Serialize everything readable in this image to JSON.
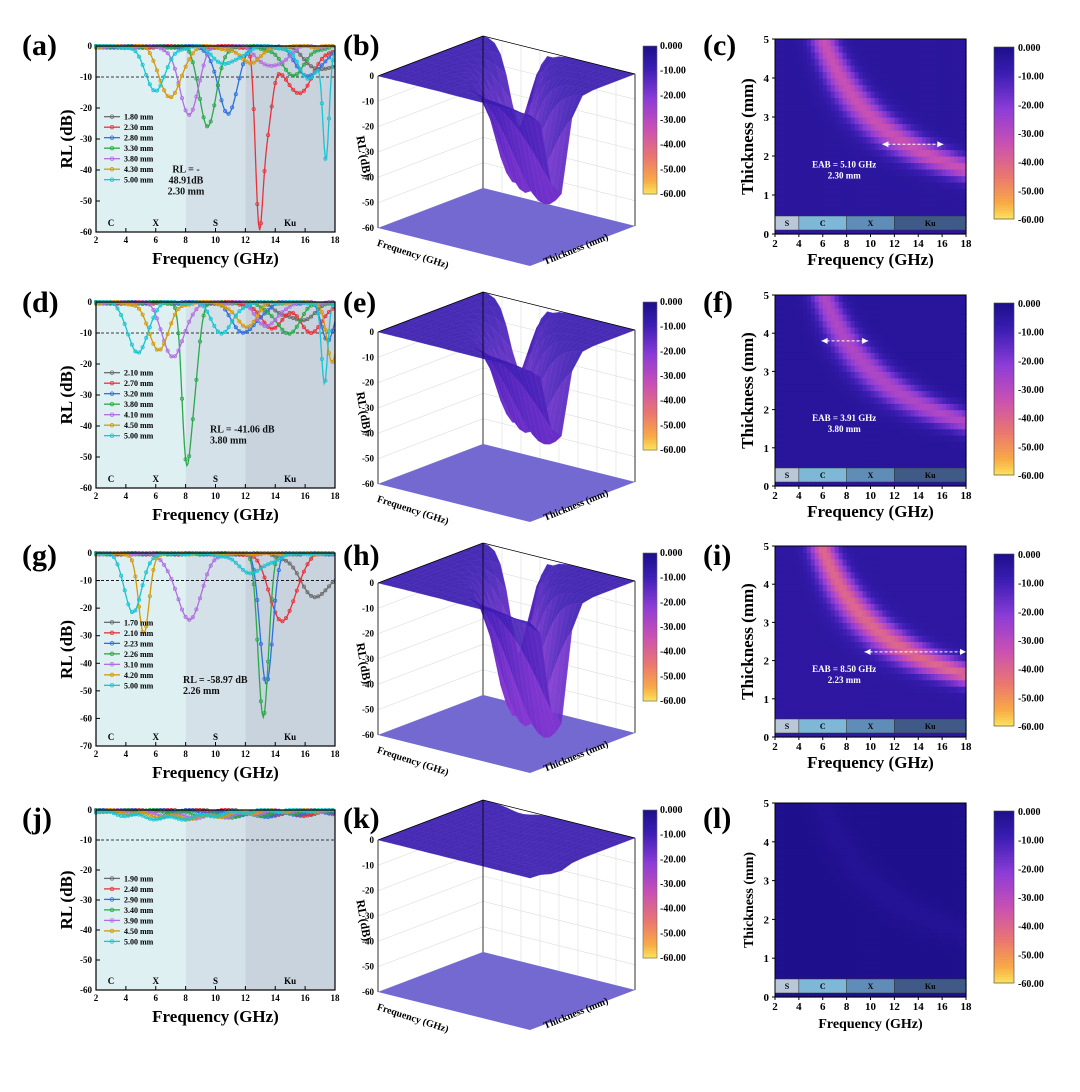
{
  "common": {
    "rl_axis_label": "RL (dB)",
    "freq_axis_label": "Frequency (GHz)",
    "thick_axis_label": "Thickness (mm)",
    "bands": [
      "C",
      "X",
      "S",
      "Ku"
    ],
    "heatmap_bands": [
      "S",
      "C",
      "X",
      "Ku"
    ],
    "colorbar_ticks": [
      "0.000",
      "-10.00",
      "-20.00",
      "-30.00",
      "-40.00",
      "-50.00",
      "-60.00"
    ],
    "colorbar_ticks_3d": [
      "0.000",
      "-10.00",
      "-20.00",
      "-30.00",
      "-40.00",
      "-50.00",
      "-60.00"
    ],
    "surface_axis_label_x": "Frequency (GHz)",
    "surface_axis_label_y": "Thickness (mm)",
    "surface_axis_label_z": "RL (dB)",
    "colors": {
      "series": [
        "#6b6b6b",
        "#e8323a",
        "#2f6fe0",
        "#2aa84a",
        "#b06ee0",
        "#d49a0a",
        "#18c4d0"
      ],
      "colormap": [
        "#fbe85f",
        "#f5a03f",
        "#e06a6a",
        "#c654b5",
        "#8a3fd2",
        "#3d1fb5",
        "#24169a"
      ]
    }
  },
  "panels": [
    {
      "label": "(a)",
      "type": "line",
      "legend": [
        "1.80 mm",
        "2.30 mm",
        "2.80 mm",
        "3.30 mm",
        "3.80 mm",
        "4.30 mm",
        "5.00 mm"
      ],
      "annotation": [
        "RL = -",
        "48.91dB",
        "2.30 mm"
      ]
    },
    {
      "label": "(b)",
      "type": "surface"
    },
    {
      "label": "(c)",
      "type": "heatmap",
      "annotation": [
        "EAB = 5.10 GHz",
        "2.30 mm"
      ]
    },
    {
      "label": "(d)",
      "type": "line",
      "legend": [
        "2.10 mm",
        "2.70 mm",
        "3.20 mm",
        "3.80 mm",
        "4.10 mm",
        "4.50 mm",
        "5.00 mm"
      ],
      "annotation": [
        "RL = -41.06 dB",
        "3.80 mm"
      ]
    },
    {
      "label": "(e)",
      "type": "surface"
    },
    {
      "label": "(f)",
      "type": "heatmap",
      "annotation": [
        "EAB = 3.91 GHz",
        "3.80 mm"
      ]
    },
    {
      "label": "(g)",
      "type": "line",
      "legend": [
        "1.70 mm",
        "2.10 mm",
        "2.23 mm",
        "2.26 mm",
        "3.10 mm",
        "4.20 mm",
        "5.00 mm"
      ],
      "annotation": [
        "RL = -58.97 dB",
        "2.26 mm"
      ]
    },
    {
      "label": "(h)",
      "type": "surface"
    },
    {
      "label": "(i)",
      "type": "heatmap",
      "annotation": [
        "EAB = 8.50 GHz",
        "2.23 mm"
      ]
    },
    {
      "label": "(j)",
      "type": "line",
      "legend": [
        "1.90 mm",
        "2.40 mm",
        "2.90 mm",
        "3.40 mm",
        "3.90 mm",
        "4.50 mm",
        "5.00 mm"
      ],
      "annotation": [
        "",
        ""
      ]
    },
    {
      "label": "(k)",
      "type": "surface"
    },
    {
      "label": "(l)",
      "type": "heatmap",
      "annotation": [
        "",
        ""
      ]
    }
  ],
  "chart_data": [
    {
      "type": "line",
      "panel": "(a)",
      "xlabel": "Frequency (GHz)",
      "ylabel": "RL (dB)",
      "xlim": [
        2,
        18
      ],
      "ylim": [
        -60,
        0
      ],
      "xticks": [
        2,
        4,
        6,
        8,
        10,
        12,
        14,
        16,
        18
      ],
      "yticks": [
        0,
        -10,
        -20,
        -30,
        -40,
        -50,
        -60
      ],
      "reference_line": -10,
      "band_regions": [
        [
          2,
          8
        ],
        [
          8,
          12
        ],
        [
          12,
          18
        ]
      ],
      "series": [
        {
          "name": "1.80 mm",
          "dips": [
            [
              17.2,
              -8,
              1.5
            ]
          ]
        },
        {
          "name": "2.30 mm",
          "dips": [
            [
              12.9,
              -48.91,
              0.35
            ],
            [
              13.4,
              -25,
              0.5
            ],
            [
              15.5,
              -15,
              1.5
            ]
          ]
        },
        {
          "name": "2.80 mm",
          "dips": [
            [
              10.8,
              -22,
              0.9
            ],
            [
              16.3,
              -10,
              1.2
            ]
          ]
        },
        {
          "name": "3.30 mm",
          "dips": [
            [
              9.5,
              -26,
              0.8
            ],
            [
              15.2,
              -9,
              1.2
            ]
          ]
        },
        {
          "name": "3.80 mm",
          "dips": [
            [
              8.2,
              -22,
              0.9
            ],
            [
              13.8,
              -7,
              1.2
            ]
          ]
        },
        {
          "name": "4.30 mm",
          "dips": [
            [
              7.0,
              -17,
              1.0
            ],
            [
              12.3,
              -5,
              1.2
            ]
          ]
        },
        {
          "name": "5.00 mm",
          "dips": [
            [
              6.0,
              -14,
              1.0
            ],
            [
              10.8,
              -6,
              1.2
            ],
            [
              17.4,
              -35,
              0.3
            ],
            [
              16.2,
              -10,
              1.0
            ]
          ]
        }
      ]
    },
    {
      "type": "heatmap",
      "panel": "(c)",
      "xlabel": "Frequency (GHz)",
      "ylabel": "Thickness (mm)",
      "xlim": [
        2,
        18
      ],
      "ylim": [
        0,
        5
      ],
      "zlim": [
        -60,
        0
      ],
      "ridge_f_times_d": 30.2,
      "min_rl": -48.91,
      "eab_arrow": {
        "thickness": 2.3,
        "from": 11.0,
        "to": 16.1
      }
    },
    {
      "type": "line",
      "panel": "(d)",
      "xlabel": "Frequency (GHz)",
      "ylabel": "RL (dB)",
      "xlim": [
        2,
        18
      ],
      "ylim": [
        -60,
        0
      ],
      "xticks": [
        2,
        4,
        6,
        8,
        10,
        12,
        14,
        16,
        18
      ],
      "yticks": [
        0,
        -10,
        -20,
        -30,
        -40,
        -50,
        -60
      ],
      "reference_line": -10,
      "series": [
        {
          "name": "2.10 mm",
          "dips": [
            [
              15.5,
              -6,
              1.5
            ]
          ]
        },
        {
          "name": "2.70 mm",
          "dips": [
            [
              13.8,
              -8,
              1.2
            ],
            [
              16.5,
              -10,
              1.0
            ]
          ]
        },
        {
          "name": "3.20 mm",
          "dips": [
            [
              12.0,
              -10,
              1.2
            ],
            [
              17.5,
              -12,
              0.6
            ]
          ]
        },
        {
          "name": "3.80 mm",
          "dips": [
            [
              8.0,
              -41.06,
              0.4
            ],
            [
              8.5,
              -28,
              0.5
            ],
            [
              14.8,
              -10,
              1.2
            ]
          ]
        },
        {
          "name": "4.10 mm",
          "dips": [
            [
              7.2,
              -18,
              1.0
            ],
            [
              13.5,
              -8,
              1.0
            ]
          ]
        },
        {
          "name": "4.50 mm",
          "dips": [
            [
              6.2,
              -15,
              1.0
            ],
            [
              12.0,
              -8,
              1.0
            ],
            [
              17.8,
              -20,
              0.5
            ]
          ]
        },
        {
          "name": "5.00 mm",
          "dips": [
            [
              4.8,
              -17,
              0.9
            ],
            [
              10.5,
              -10,
              1.0
            ],
            [
              17.3,
              -27,
              0.3
            ]
          ]
        }
      ]
    },
    {
      "type": "heatmap",
      "panel": "(f)",
      "xlabel": "Frequency (GHz)",
      "ylabel": "Thickness (mm)",
      "xlim": [
        2,
        18
      ],
      "ylim": [
        0,
        5
      ],
      "zlim": [
        -60,
        0
      ],
      "ridge_f_times_d": 30.4,
      "min_rl": -41.06,
      "eab_arrow": {
        "thickness": 3.8,
        "from": 5.9,
        "to": 9.8
      }
    },
    {
      "type": "line",
      "panel": "(g)",
      "xlabel": "Frequency (GHz)",
      "ylabel": "RL (dB)",
      "xlim": [
        2,
        18
      ],
      "ylim": [
        -70,
        0
      ],
      "xticks": [
        2,
        4,
        6,
        8,
        10,
        12,
        14,
        16,
        18
      ],
      "yticks": [
        0,
        -10,
        -20,
        -30,
        -40,
        -50,
        -60,
        -70
      ],
      "reference_line": -10,
      "series": [
        {
          "name": "1.70 mm",
          "dips": [
            [
              16.8,
              -16,
              1.6
            ]
          ]
        },
        {
          "name": "2.10 mm",
          "dips": [
            [
              14.5,
              -25,
              1.2
            ]
          ]
        },
        {
          "name": "2.23 mm",
          "dips": [
            [
              13.4,
              -47,
              0.6
            ]
          ]
        },
        {
          "name": "2.26 mm",
          "dips": [
            [
              13.2,
              -58.97,
              0.5
            ]
          ]
        },
        {
          "name": "3.10 mm",
          "dips": [
            [
              8.2,
              -24,
              1.2
            ]
          ]
        },
        {
          "name": "4.20 mm",
          "dips": [
            [
              5.2,
              -30,
              0.5
            ]
          ]
        },
        {
          "name": "5.00 mm",
          "dips": [
            [
              4.5,
              -22,
              0.8
            ],
            [
              12.5,
              -7,
              1.5
            ]
          ]
        }
      ]
    },
    {
      "type": "heatmap",
      "panel": "(i)",
      "xlabel": "Frequency (GHz)",
      "ylabel": "Thickness (mm)",
      "xlim": [
        2,
        18
      ],
      "ylim": [
        0,
        5
      ],
      "zlim": [
        -60,
        0
      ],
      "ridge_f_times_d": 29.6,
      "min_rl": -58.97,
      "eab_arrow": {
        "thickness": 2.23,
        "from": 9.5,
        "to": 18.0
      }
    },
    {
      "type": "line",
      "panel": "(j)",
      "xlabel": "Frequency (GHz)",
      "ylabel": "RL (dB)",
      "xlim": [
        2,
        18
      ],
      "ylim": [
        -60,
        0
      ],
      "xticks": [
        2,
        4,
        6,
        8,
        10,
        12,
        14,
        16,
        18
      ],
      "yticks": [
        0,
        -10,
        -20,
        -30,
        -40,
        -50,
        -60
      ],
      "reference_line": -10,
      "series": [
        {
          "name": "1.90 mm",
          "dips": [
            [
              16,
              -1.2,
              4
            ]
          ]
        },
        {
          "name": "2.40 mm",
          "dips": [
            [
              15,
              -1.5,
              4
            ]
          ]
        },
        {
          "name": "2.90 mm",
          "dips": [
            [
              13,
              -1.8,
              4
            ]
          ]
        },
        {
          "name": "3.40 mm",
          "dips": [
            [
              11,
              -2.0,
              4
            ]
          ]
        },
        {
          "name": "3.90 mm",
          "dips": [
            [
              9,
              -2.3,
              4
            ]
          ]
        },
        {
          "name": "4.50 mm",
          "dips": [
            [
              8,
              -2.5,
              4
            ]
          ]
        },
        {
          "name": "5.00 mm",
          "dips": [
            [
              7,
              -2.8,
              4
            ]
          ]
        }
      ]
    },
    {
      "type": "heatmap",
      "panel": "(l)",
      "xlabel": "Frequency (GHz)",
      "ylabel": "Thickness (mm)",
      "xlim": [
        2,
        18
      ],
      "ylim": [
        0,
        5
      ],
      "zlim": [
        -60,
        0
      ],
      "ridge_f_times_d": 30,
      "min_rl": -3
    }
  ]
}
